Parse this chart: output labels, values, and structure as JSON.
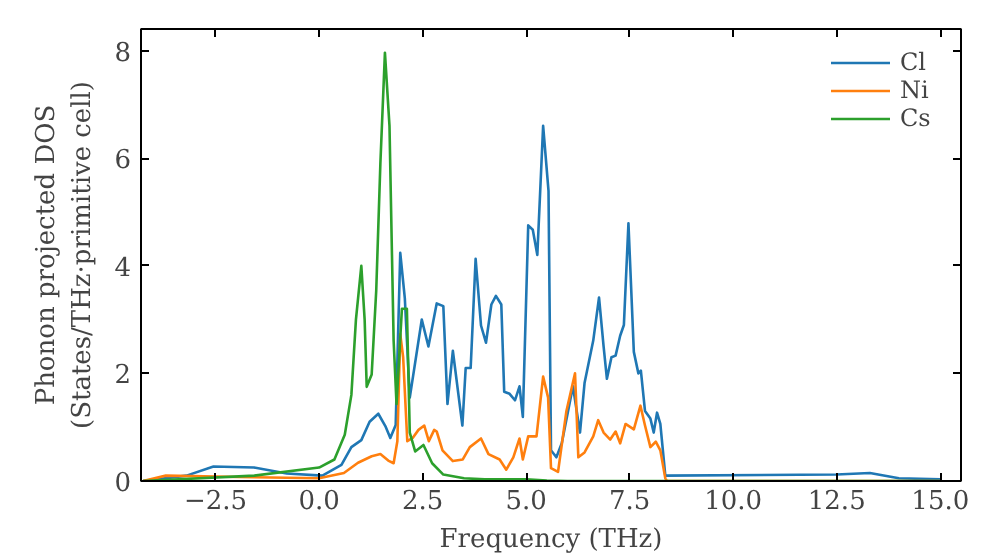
{
  "chart_data": {
    "type": "line",
    "xlabel": "Frequency (THz)",
    "ylabel": "Phonon projected DOS\n(States/THz·primitive cell)",
    "xlim": [
      -4.3,
      15.5
    ],
    "ylim": [
      0,
      8.4
    ],
    "xticks": [
      {
        "value": -2.5,
        "label": "−2.5"
      },
      {
        "value": 0,
        "label": "0.0"
      },
      {
        "value": 2.5,
        "label": "2.5"
      },
      {
        "value": 5,
        "label": "5.0"
      },
      {
        "value": 7.5,
        "label": "7.5"
      },
      {
        "value": 10,
        "label": "10.0"
      },
      {
        "value": 12.5,
        "label": "12.5"
      },
      {
        "value": 15,
        "label": "15.0"
      }
    ],
    "yticks": [
      0,
      2,
      4,
      6,
      8
    ],
    "grid": false,
    "legend": "top right",
    "marker": "none",
    "line_style": "solid",
    "series": [
      {
        "name": "Cl",
        "color": "#1f77b4",
        "x": [
          -4.25,
          -3.2,
          -2.55,
          -1.57,
          -0.78,
          0.08,
          0.54,
          0.78,
          1.02,
          1.22,
          1.43,
          1.6,
          1.72,
          1.85,
          1.96,
          2.07,
          2.19,
          2.48,
          2.64,
          2.84,
          3.0,
          3.1,
          3.23,
          3.46,
          3.54,
          3.66,
          3.78,
          3.91,
          4.03,
          4.16,
          4.27,
          4.4,
          4.47,
          4.6,
          4.73,
          4.84,
          4.92,
          5.05,
          5.16,
          5.27,
          5.41,
          5.54,
          5.6,
          5.73,
          5.86,
          6.13,
          6.3,
          6.41,
          6.62,
          6.76,
          6.87,
          6.95,
          7.06,
          7.16,
          7.27,
          7.36,
          7.47,
          7.6,
          7.71,
          7.77,
          7.87,
          8.0,
          8.08,
          8.16,
          8.24,
          8.36,
          12.5,
          13.3,
          14.0,
          15.0
        ],
        "values": [
          0.0,
          0.1,
          0.27,
          0.25,
          0.14,
          0.1,
          0.3,
          0.63,
          0.76,
          1.1,
          1.25,
          1.02,
          0.8,
          1.04,
          4.24,
          3.4,
          1.55,
          3.0,
          2.5,
          3.3,
          3.25,
          1.43,
          2.42,
          1.03,
          2.1,
          2.1,
          4.13,
          2.89,
          2.57,
          3.28,
          3.44,
          3.28,
          1.66,
          1.62,
          1.5,
          1.76,
          1.19,
          4.75,
          4.67,
          4.2,
          6.6,
          5.39,
          0.57,
          0.44,
          0.7,
          1.76,
          0.9,
          1.82,
          2.61,
          3.41,
          2.5,
          1.9,
          2.3,
          2.33,
          2.7,
          2.9,
          4.79,
          2.4,
          2.0,
          2.05,
          1.3,
          1.16,
          0.9,
          1.27,
          1.06,
          0.1,
          0.12,
          0.15,
          0.05,
          0.03
        ]
      },
      {
        "name": "Ni",
        "color": "#ff7f0e",
        "x": [
          -4.25,
          -3.7,
          -1.57,
          0.0,
          0.6,
          0.94,
          1.27,
          1.48,
          1.67,
          1.8,
          1.89,
          1.96,
          2.03,
          2.13,
          2.26,
          2.4,
          2.54,
          2.65,
          2.78,
          2.84,
          2.98,
          3.23,
          3.47,
          3.64,
          3.91,
          4.09,
          4.36,
          4.52,
          4.69,
          4.84,
          4.92,
          5.05,
          5.25,
          5.41,
          5.53,
          5.6,
          5.77,
          5.97,
          6.18,
          6.26,
          6.41,
          6.62,
          6.74,
          6.87,
          7.03,
          7.16,
          7.27,
          7.4,
          7.6,
          7.76,
          7.87,
          8.0,
          8.13,
          8.24,
          8.36,
          8.4,
          15.0
        ],
        "values": [
          0.0,
          0.1,
          0.07,
          0.05,
          0.15,
          0.34,
          0.46,
          0.5,
          0.38,
          0.33,
          0.74,
          2.73,
          2.3,
          0.74,
          0.8,
          0.95,
          1.03,
          0.74,
          0.95,
          0.92,
          0.57,
          0.37,
          0.4,
          0.63,
          0.79,
          0.5,
          0.4,
          0.21,
          0.44,
          0.79,
          0.4,
          0.83,
          0.83,
          1.94,
          1.55,
          0.24,
          0.17,
          1.29,
          2.0,
          0.44,
          0.53,
          0.83,
          1.13,
          0.9,
          0.77,
          0.92,
          0.7,
          1.06,
          0.96,
          1.4,
          1.03,
          0.63,
          0.73,
          0.57,
          0.05,
          0.0,
          0.0
        ]
      },
      {
        "name": "Cs",
        "color": "#2ca02c",
        "x": [
          -4.25,
          -1.57,
          0.0,
          0.37,
          0.62,
          0.78,
          0.89,
          1.02,
          1.1,
          1.15,
          1.27,
          1.38,
          1.48,
          1.59,
          1.7,
          1.8,
          1.87,
          2.0,
          2.12,
          2.19,
          2.32,
          2.52,
          2.73,
          3.0,
          3.5,
          4.0,
          5.0,
          5.5,
          6.0,
          15.0
        ],
        "values": [
          0.0,
          0.1,
          0.25,
          0.4,
          0.86,
          1.6,
          3.0,
          4.0,
          3.0,
          1.75,
          1.98,
          3.54,
          5.9,
          7.96,
          6.6,
          2.61,
          1.43,
          3.2,
          3.2,
          0.9,
          0.55,
          0.67,
          0.33,
          0.12,
          0.05,
          0.03,
          0.03,
          0.01,
          0.0,
          0.0
        ]
      }
    ]
  }
}
